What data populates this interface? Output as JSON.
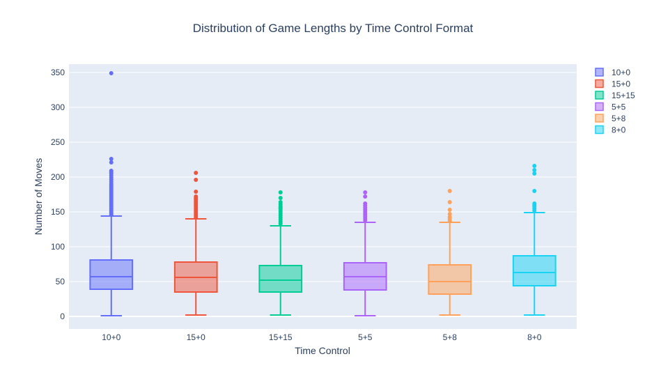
{
  "chart_data": {
    "type": "box",
    "title": "Distribution of Game Lengths by Time Control Format",
    "xlabel": "Time Control",
    "ylabel": "Number of Moves",
    "ylim": [
      -18,
      362
    ],
    "yticks": [
      0,
      50,
      100,
      150,
      200,
      250,
      300,
      350
    ],
    "grid": true,
    "legend_position": "top-right",
    "categories": [
      "10+0",
      "15+0",
      "15+15",
      "5+5",
      "5+8",
      "8+0"
    ],
    "series": [
      {
        "name": "10+0",
        "color": "#636efa",
        "min": 1,
        "q1": 39,
        "median": 57,
        "mean": 57,
        "q3": 81,
        "upper_fence": 144,
        "outliers": [
          146,
          148,
          150,
          152,
          154,
          156,
          158,
          160,
          162,
          164,
          166,
          168,
          170,
          172,
          174,
          176,
          178,
          180,
          182,
          184,
          186,
          188,
          190,
          193,
          196,
          199,
          202,
          205,
          207,
          209,
          221,
          226,
          349
        ]
      },
      {
        "name": "15+0",
        "color": "#ef553b",
        "min": 2,
        "q1": 35,
        "median": 56,
        "mean": 56,
        "q3": 78,
        "upper_fence": 140,
        "outliers": [
          142,
          144,
          146,
          148,
          150,
          152,
          154,
          156,
          158,
          160,
          162,
          164,
          166,
          168,
          170,
          172,
          179,
          196,
          206
        ]
      },
      {
        "name": "15+15",
        "color": "#00cc96",
        "min": 2,
        "q1": 35,
        "median": 52,
        "mean": 52,
        "q3": 73,
        "upper_fence": 130,
        "outliers": [
          133,
          136,
          139,
          142,
          145,
          148,
          151,
          154,
          156,
          158,
          161,
          164,
          170,
          178
        ]
      },
      {
        "name": "5+5",
        "color": "#ab63fa",
        "min": 1,
        "q1": 38,
        "median": 57,
        "mean": 57,
        "q3": 77,
        "upper_fence": 135,
        "outliers": [
          138,
          141,
          144,
          147,
          150,
          153,
          156,
          159,
          162,
          172,
          178
        ]
      },
      {
        "name": "5+8",
        "color": "#ffa15a",
        "min": 2,
        "q1": 32,
        "median": 50,
        "mean": 50,
        "q3": 74,
        "upper_fence": 135,
        "outliers": [
          137,
          140,
          143,
          147,
          153,
          164,
          180
        ]
      },
      {
        "name": "8+0",
        "color": "#19d3f3",
        "min": 2,
        "q1": 44,
        "median": 63,
        "mean": 63,
        "q3": 87,
        "upper_fence": 149,
        "outliers": [
          152,
          155,
          158,
          160,
          162,
          180,
          205,
          210,
          216
        ]
      }
    ]
  }
}
